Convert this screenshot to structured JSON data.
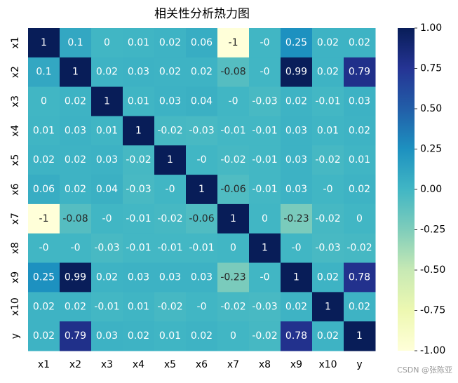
{
  "chart_data": {
    "type": "heatmap",
    "title": "相关性分析热力图",
    "categories": [
      "x1",
      "x2",
      "x3",
      "x4",
      "x5",
      "x6",
      "x7",
      "x8",
      "x9",
      "x10",
      "y"
    ],
    "values": [
      [
        1,
        0.1,
        0,
        0.01,
        0.02,
        0.06,
        -1,
        0,
        0.25,
        0.02,
        0.02
      ],
      [
        0.1,
        1,
        0.02,
        0.03,
        0.02,
        0.02,
        -0.08,
        0,
        0.99,
        0.02,
        0.79
      ],
      [
        0,
        0.02,
        1,
        0.01,
        0.03,
        0.04,
        0,
        -0.03,
        0.02,
        -0.01,
        0.03
      ],
      [
        0.01,
        0.03,
        0.01,
        1,
        -0.02,
        -0.03,
        -0.01,
        -0.01,
        0.03,
        0.01,
        0.02
      ],
      [
        0.02,
        0.02,
        0.03,
        -0.02,
        1,
        0,
        -0.02,
        -0.01,
        0.03,
        -0.02,
        0.01
      ],
      [
        0.06,
        0.02,
        0.04,
        -0.03,
        0,
        1,
        -0.06,
        -0.01,
        0.03,
        0,
        0.02
      ],
      [
        -1,
        -0.08,
        0,
        -0.01,
        -0.02,
        -0.06,
        1,
        0,
        -0.23,
        -0.02,
        0
      ],
      [
        0,
        0,
        -0.03,
        -0.01,
        -0.01,
        -0.01,
        0,
        1,
        0,
        -0.03,
        -0.02
      ],
      [
        0.25,
        0.99,
        0.02,
        0.03,
        0.03,
        0.03,
        -0.23,
        0,
        1,
        0.02,
        0.78
      ],
      [
        0.02,
        0.02,
        -0.01,
        0.01,
        -0.02,
        0,
        -0.02,
        -0.03,
        0.02,
        1,
        0.02
      ],
      [
        0.02,
        0.79,
        0.03,
        0.02,
        0.01,
        0.02,
        0,
        -0.02,
        0.78,
        0.02,
        1
      ]
    ],
    "value_labels": [
      [
        "1",
        "0.1",
        "0",
        "0.01",
        "0.02",
        "0.06",
        "-1",
        "-0",
        "0.25",
        "0.02",
        "0.02"
      ],
      [
        "0.1",
        "1",
        "0.02",
        "0.03",
        "0.02",
        "0.02",
        "-0.08",
        "-0",
        "0.99",
        "0.02",
        "0.79"
      ],
      [
        "0",
        "0.02",
        "1",
        "0.01",
        "0.03",
        "0.04",
        "-0",
        "-0.03",
        "0.02",
        "-0.01",
        "0.03"
      ],
      [
        "0.01",
        "0.03",
        "0.01",
        "1",
        "-0.02",
        "-0.03",
        "-0.01",
        "-0.01",
        "0.03",
        "0.01",
        "0.02"
      ],
      [
        "0.02",
        "0.02",
        "0.03",
        "-0.02",
        "1",
        "-0",
        "-0.02",
        "-0.01",
        "0.03",
        "-0.02",
        "0.01"
      ],
      [
        "0.06",
        "0.02",
        "0.04",
        "-0.03",
        "-0",
        "1",
        "-0.06",
        "-0.01",
        "0.03",
        "-0",
        "0.02"
      ],
      [
        "-1",
        "-0.08",
        "-0",
        "-0.01",
        "-0.02",
        "-0.06",
        "1",
        "0",
        "-0.23",
        "-0.02",
        "0"
      ],
      [
        "-0",
        "-0",
        "-0.03",
        "-0.01",
        "-0.01",
        "-0.01",
        "0",
        "1",
        "-0",
        "-0.03",
        "-0.02"
      ],
      [
        "0.25",
        "0.99",
        "0.02",
        "0.03",
        "0.03",
        "0.03",
        "-0.23",
        "-0",
        "1",
        "0.02",
        "0.78"
      ],
      [
        "0.02",
        "0.02",
        "-0.01",
        "0.01",
        "-0.02",
        "-0",
        "-0.02",
        "-0.03",
        "0.02",
        "1",
        "0.02"
      ],
      [
        "0.02",
        "0.79",
        "0.03",
        "0.02",
        "0.01",
        "0.02",
        "0",
        "-0.02",
        "0.78",
        "0.02",
        "1"
      ]
    ],
    "zlim": [
      -1,
      1
    ],
    "colorscale": [
      "#ffffd9",
      "#edf8b1",
      "#c7e9b4",
      "#7fcdbb",
      "#41b6c4",
      "#1d91c0",
      "#225ea8",
      "#253494",
      "#081d58"
    ],
    "zticks": [
      {
        "value": -1,
        "label": "-1.00"
      },
      {
        "value": -0.75,
        "label": "-0.75"
      },
      {
        "value": -0.5,
        "label": "-0.50"
      },
      {
        "value": -0.25,
        "label": "-0.25"
      },
      {
        "value": 0,
        "label": "0.00"
      },
      {
        "value": 0.25,
        "label": "0.25"
      },
      {
        "value": 0.5,
        "label": "0.50"
      },
      {
        "value": 0.75,
        "label": "0.75"
      },
      {
        "value": 1,
        "label": "1.00"
      }
    ],
    "watermark": "CSDN @张陈亚"
  }
}
